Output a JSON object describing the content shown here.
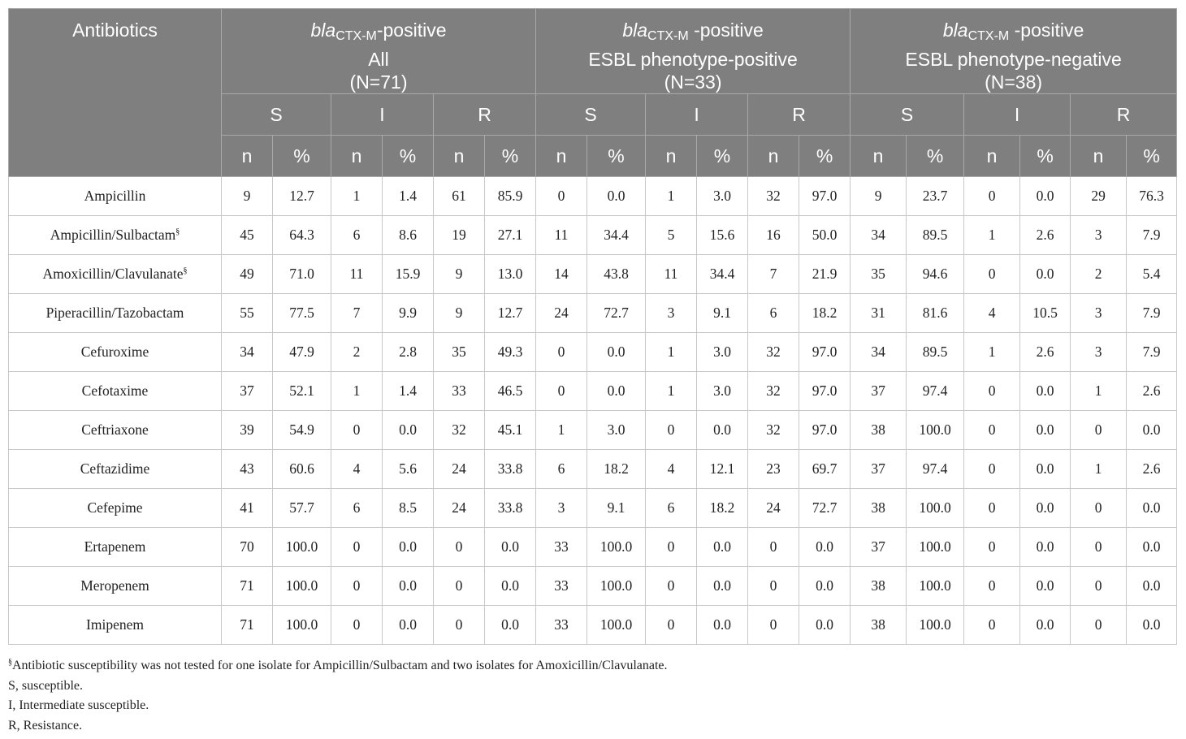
{
  "table": {
    "first_header": "Antibiotics",
    "groups": [
      {
        "italic": "bla",
        "sub": "CTX-M",
        "rest": "-positive",
        "line2": "All",
        "line3": "(N=71)"
      },
      {
        "italic": "bla",
        "sub": "CTX-M",
        "rest": " -positive",
        "line2": "ESBL phenotype-positive",
        "line3": "(N=33)"
      },
      {
        "italic": "bla",
        "sub": "CTX-M",
        "rest": " -positive",
        "line2": "ESBL phenotype-negative",
        "line3": "(N=38)"
      }
    ],
    "categories": [
      "S",
      "I",
      "R"
    ],
    "subcols": [
      "n",
      "%"
    ],
    "rows": [
      {
        "name": "Ampicillin",
        "mark": "",
        "values": [
          "9",
          "12.7",
          "1",
          "1.4",
          "61",
          "85.9",
          "0",
          "0.0",
          "1",
          "3.0",
          "32",
          "97.0",
          "9",
          "23.7",
          "0",
          "0.0",
          "29",
          "76.3"
        ]
      },
      {
        "name": "Ampicillin/Sulbactam",
        "mark": "§",
        "values": [
          "45",
          "64.3",
          "6",
          "8.6",
          "19",
          "27.1",
          "11",
          "34.4",
          "5",
          "15.6",
          "16",
          "50.0",
          "34",
          "89.5",
          "1",
          "2.6",
          "3",
          "7.9"
        ]
      },
      {
        "name": "Amoxicillin/Clavulanate",
        "mark": "§",
        "values": [
          "49",
          "71.0",
          "11",
          "15.9",
          "9",
          "13.0",
          "14",
          "43.8",
          "11",
          "34.4",
          "7",
          "21.9",
          "35",
          "94.6",
          "0",
          "0.0",
          "2",
          "5.4"
        ]
      },
      {
        "name": "Piperacillin/Tazobactam",
        "mark": "",
        "values": [
          "55",
          "77.5",
          "7",
          "9.9",
          "9",
          "12.7",
          "24",
          "72.7",
          "3",
          "9.1",
          "6",
          "18.2",
          "31",
          "81.6",
          "4",
          "10.5",
          "3",
          "7.9"
        ]
      },
      {
        "name": "Cefuroxime",
        "mark": "",
        "values": [
          "34",
          "47.9",
          "2",
          "2.8",
          "35",
          "49.3",
          "0",
          "0.0",
          "1",
          "3.0",
          "32",
          "97.0",
          "34",
          "89.5",
          "1",
          "2.6",
          "3",
          "7.9"
        ]
      },
      {
        "name": "Cefotaxime",
        "mark": "",
        "values": [
          "37",
          "52.1",
          "1",
          "1.4",
          "33",
          "46.5",
          "0",
          "0.0",
          "1",
          "3.0",
          "32",
          "97.0",
          "37",
          "97.4",
          "0",
          "0.0",
          "1",
          "2.6"
        ]
      },
      {
        "name": "Ceftriaxone",
        "mark": "",
        "values": [
          "39",
          "54.9",
          "0",
          "0.0",
          "32",
          "45.1",
          "1",
          "3.0",
          "0",
          "0.0",
          "32",
          "97.0",
          "38",
          "100.0",
          "0",
          "0.0",
          "0",
          "0.0"
        ]
      },
      {
        "name": "Ceftazidime",
        "mark": "",
        "values": [
          "43",
          "60.6",
          "4",
          "5.6",
          "24",
          "33.8",
          "6",
          "18.2",
          "4",
          "12.1",
          "23",
          "69.7",
          "37",
          "97.4",
          "0",
          "0.0",
          "1",
          "2.6"
        ]
      },
      {
        "name": "Cefepime",
        "mark": "",
        "values": [
          "41",
          "57.7",
          "6",
          "8.5",
          "24",
          "33.8",
          "3",
          "9.1",
          "6",
          "18.2",
          "24",
          "72.7",
          "38",
          "100.0",
          "0",
          "0.0",
          "0",
          "0.0"
        ]
      },
      {
        "name": "Ertapenem",
        "mark": "",
        "values": [
          "70",
          "100.0",
          "0",
          "0.0",
          "0",
          "0.0",
          "33",
          "100.0",
          "0",
          "0.0",
          "0",
          "0.0",
          "37",
          "100.0",
          "0",
          "0.0",
          "0",
          "0.0"
        ]
      },
      {
        "name": "Meropenem",
        "mark": "",
        "values": [
          "71",
          "100.0",
          "0",
          "0.0",
          "0",
          "0.0",
          "33",
          "100.0",
          "0",
          "0.0",
          "0",
          "0.0",
          "38",
          "100.0",
          "0",
          "0.0",
          "0",
          "0.0"
        ]
      },
      {
        "name": "Imipenem",
        "mark": "",
        "values": [
          "71",
          "100.0",
          "0",
          "0.0",
          "0",
          "0.0",
          "33",
          "100.0",
          "0",
          "0.0",
          "0",
          "0.0",
          "38",
          "100.0",
          "0",
          "0.0",
          "0",
          "0.0"
        ]
      }
    ]
  },
  "footnotes": [
    {
      "mark": "§",
      "text": "Antibiotic susceptibility was not tested for one isolate for Ampicillin/Sulbactam and two isolates for Amoxicillin/Clavulanate."
    },
    {
      "mark": "",
      "text": "S, susceptible."
    },
    {
      "mark": "",
      "text": "I, Intermediate susceptible."
    },
    {
      "mark": "",
      "text": "R, Resistance."
    }
  ],
  "colors": {
    "header_bg": "#7f7f7f",
    "header_text": "#ffffff",
    "grid": "#c8c8c8"
  }
}
